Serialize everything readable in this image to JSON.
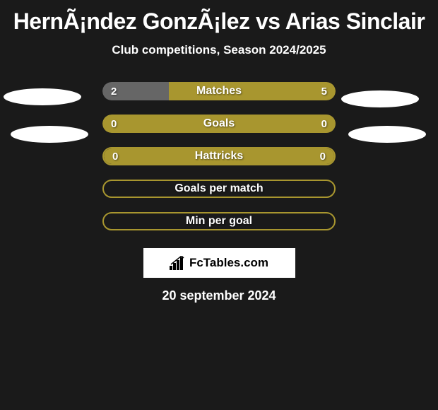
{
  "title": "HernÃ¡ndez GonzÃ¡lez vs Arias Sinclair",
  "subtitle": "Club competitions, Season 2024/2025",
  "colors": {
    "background": "#1a1a1a",
    "barAccent": "#a8962f",
    "barMuted": "#666666",
    "barBorder": "#a8962f",
    "text": "#ffffff"
  },
  "stats": [
    {
      "label": "Matches",
      "leftValue": "2",
      "rightValue": "5",
      "leftPercent": 28.5,
      "rightPercent": 71.5,
      "leftColor": "#666666",
      "rightColor": "#a8962f"
    },
    {
      "label": "Goals",
      "leftValue": "0",
      "rightValue": "0",
      "leftPercent": 100,
      "rightPercent": 0,
      "leftColor": "#a8962f",
      "rightColor": "#a8962f"
    },
    {
      "label": "Hattricks",
      "leftValue": "0",
      "rightValue": "0",
      "leftPercent": 100,
      "rightPercent": 0,
      "leftColor": "#a8962f",
      "rightColor": "#a8962f",
      "bordered": true
    },
    {
      "label": "Goals per match",
      "leftValue": "",
      "rightValue": "",
      "leftPercent": 100,
      "rightPercent": 0,
      "leftColor": "transparent",
      "rightColor": "transparent",
      "bordered": true
    },
    {
      "label": "Min per goal",
      "leftValue": "",
      "rightValue": "",
      "leftPercent": 100,
      "rightPercent": 0,
      "leftColor": "transparent",
      "rightColor": "transparent",
      "bordered": true
    }
  ],
  "logo": {
    "text": "FcTables.com"
  },
  "date": "20 september 2024"
}
